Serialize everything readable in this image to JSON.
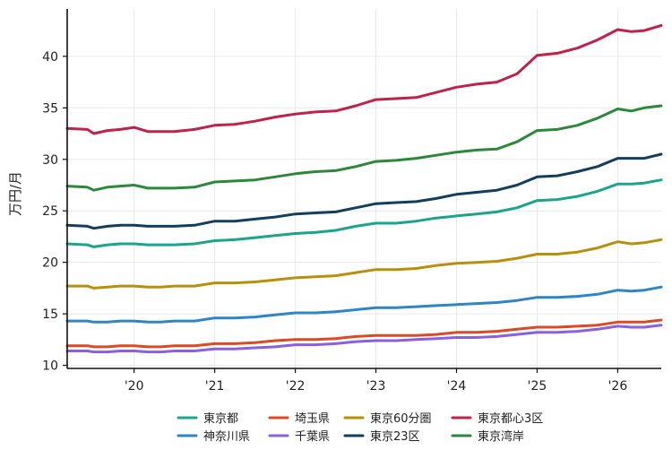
{
  "chart_data": {
    "type": "line",
    "ylabel": "万円/月",
    "xlim": [
      2019.17,
      2026.54
    ],
    "ylim": [
      9.7,
      44.6
    ],
    "x_ticks": [
      {
        "value": 2020,
        "label": "'20"
      },
      {
        "value": 2021,
        "label": "'21"
      },
      {
        "value": 2022,
        "label": "'22"
      },
      {
        "value": 2023,
        "label": "'23"
      },
      {
        "value": 2024,
        "label": "'24"
      },
      {
        "value": 2025,
        "label": "'25"
      },
      {
        "value": 2026,
        "label": "'26"
      }
    ],
    "y_ticks": [
      10,
      15,
      20,
      25,
      30,
      35,
      40
    ],
    "grid": true,
    "legend_position": "bottom",
    "series": [
      {
        "name": "東京都",
        "color": "#1aa58c",
        "x": [
          2019.17,
          2019.42,
          2019.5,
          2019.67,
          2019.83,
          2020.0,
          2020.17,
          2020.33,
          2020.5,
          2020.75,
          2021.0,
          2021.25,
          2021.5,
          2021.75,
          2022.0,
          2022.25,
          2022.5,
          2022.75,
          2023.0,
          2023.25,
          2023.5,
          2023.75,
          2024.0,
          2024.25,
          2024.5,
          2024.75,
          2025.0,
          2025.25,
          2025.5,
          2025.75,
          2026.0,
          2026.17,
          2026.33,
          2026.54
        ],
        "y": [
          21.8,
          21.7,
          21.5,
          21.7,
          21.8,
          21.8,
          21.7,
          21.7,
          21.7,
          21.8,
          22.1,
          22.2,
          22.4,
          22.6,
          22.8,
          22.9,
          23.1,
          23.5,
          23.8,
          23.8,
          24.0,
          24.3,
          24.5,
          24.7,
          24.9,
          25.3,
          26.0,
          26.1,
          26.4,
          26.9,
          27.6,
          27.6,
          27.7,
          28.0
        ]
      },
      {
        "name": "神奈川県",
        "color": "#2c86c8",
        "x": [
          2019.17,
          2019.42,
          2019.5,
          2019.67,
          2019.83,
          2020.0,
          2020.17,
          2020.33,
          2020.5,
          2020.75,
          2021.0,
          2021.25,
          2021.5,
          2021.75,
          2022.0,
          2022.25,
          2022.5,
          2022.75,
          2023.0,
          2023.25,
          2023.5,
          2023.75,
          2024.0,
          2024.25,
          2024.5,
          2024.75,
          2025.0,
          2025.25,
          2025.5,
          2025.75,
          2026.0,
          2026.17,
          2026.33,
          2026.54
        ],
        "y": [
          14.3,
          14.3,
          14.2,
          14.2,
          14.3,
          14.3,
          14.2,
          14.2,
          14.3,
          14.3,
          14.6,
          14.6,
          14.7,
          14.9,
          15.1,
          15.1,
          15.2,
          15.4,
          15.6,
          15.6,
          15.7,
          15.8,
          15.9,
          16.0,
          16.1,
          16.3,
          16.6,
          16.6,
          16.7,
          16.9,
          17.3,
          17.2,
          17.3,
          17.6
        ]
      },
      {
        "name": "埼玉県",
        "color": "#db4a23",
        "x": [
          2019.17,
          2019.42,
          2019.5,
          2019.67,
          2019.83,
          2020.0,
          2020.17,
          2020.33,
          2020.5,
          2020.75,
          2021.0,
          2021.25,
          2021.5,
          2021.75,
          2022.0,
          2022.25,
          2022.5,
          2022.75,
          2023.0,
          2023.25,
          2023.5,
          2023.75,
          2024.0,
          2024.25,
          2024.5,
          2024.75,
          2025.0,
          2025.25,
          2025.5,
          2025.75,
          2026.0,
          2026.17,
          2026.33,
          2026.54
        ],
        "y": [
          11.9,
          11.9,
          11.8,
          11.8,
          11.9,
          11.9,
          11.8,
          11.8,
          11.9,
          11.9,
          12.1,
          12.1,
          12.2,
          12.4,
          12.5,
          12.5,
          12.6,
          12.8,
          12.9,
          12.9,
          12.9,
          13.0,
          13.2,
          13.2,
          13.3,
          13.5,
          13.7,
          13.7,
          13.8,
          13.9,
          14.2,
          14.2,
          14.2,
          14.4
        ]
      },
      {
        "name": "千葉県",
        "color": "#8b5fe0",
        "x": [
          2019.17,
          2019.42,
          2019.5,
          2019.67,
          2019.83,
          2020.0,
          2020.17,
          2020.33,
          2020.5,
          2020.75,
          2021.0,
          2021.25,
          2021.5,
          2021.75,
          2022.0,
          2022.25,
          2022.5,
          2022.75,
          2023.0,
          2023.25,
          2023.5,
          2023.75,
          2024.0,
          2024.25,
          2024.5,
          2024.75,
          2025.0,
          2025.25,
          2025.5,
          2025.75,
          2026.0,
          2026.17,
          2026.33,
          2026.54
        ],
        "y": [
          11.4,
          11.4,
          11.3,
          11.3,
          11.4,
          11.4,
          11.3,
          11.3,
          11.4,
          11.4,
          11.6,
          11.6,
          11.7,
          11.8,
          12.0,
          12.0,
          12.1,
          12.3,
          12.4,
          12.4,
          12.5,
          12.6,
          12.7,
          12.7,
          12.8,
          13.0,
          13.2,
          13.2,
          13.3,
          13.5,
          13.8,
          13.7,
          13.7,
          13.9
        ]
      },
      {
        "name": "東京60分圏",
        "color": "#b9900a",
        "x": [
          2019.17,
          2019.42,
          2019.5,
          2019.67,
          2019.83,
          2020.0,
          2020.17,
          2020.33,
          2020.5,
          2020.75,
          2021.0,
          2021.25,
          2021.5,
          2021.75,
          2022.0,
          2022.25,
          2022.5,
          2022.75,
          2023.0,
          2023.25,
          2023.5,
          2023.75,
          2024.0,
          2024.25,
          2024.5,
          2024.75,
          2025.0,
          2025.25,
          2025.5,
          2025.75,
          2026.0,
          2026.17,
          2026.33,
          2026.54
        ],
        "y": [
          17.7,
          17.7,
          17.5,
          17.6,
          17.7,
          17.7,
          17.6,
          17.6,
          17.7,
          17.7,
          18.0,
          18.0,
          18.1,
          18.3,
          18.5,
          18.6,
          18.7,
          19.0,
          19.3,
          19.3,
          19.4,
          19.7,
          19.9,
          20.0,
          20.1,
          20.4,
          20.8,
          20.8,
          21.0,
          21.4,
          22.0,
          21.8,
          21.9,
          22.2
        ]
      },
      {
        "name": "東京23区",
        "color": "#123f60",
        "x": [
          2019.17,
          2019.42,
          2019.5,
          2019.67,
          2019.83,
          2020.0,
          2020.17,
          2020.33,
          2020.5,
          2020.75,
          2021.0,
          2021.25,
          2021.5,
          2021.75,
          2022.0,
          2022.25,
          2022.5,
          2022.75,
          2023.0,
          2023.25,
          2023.5,
          2023.75,
          2024.0,
          2024.25,
          2024.5,
          2024.75,
          2025.0,
          2025.25,
          2025.5,
          2025.75,
          2026.0,
          2026.17,
          2026.33,
          2026.54
        ],
        "y": [
          23.6,
          23.5,
          23.3,
          23.5,
          23.6,
          23.6,
          23.5,
          23.5,
          23.5,
          23.6,
          24.0,
          24.0,
          24.2,
          24.4,
          24.7,
          24.8,
          24.9,
          25.3,
          25.7,
          25.8,
          25.9,
          26.2,
          26.6,
          26.8,
          27.0,
          27.5,
          28.3,
          28.4,
          28.8,
          29.3,
          30.1,
          30.1,
          30.1,
          30.5
        ]
      },
      {
        "name": "東京都心3区",
        "color": "#c0224a",
        "x": [
          2019.17,
          2019.42,
          2019.5,
          2019.67,
          2019.83,
          2020.0,
          2020.17,
          2020.33,
          2020.5,
          2020.75,
          2021.0,
          2021.25,
          2021.5,
          2021.75,
          2022.0,
          2022.25,
          2022.5,
          2022.75,
          2023.0,
          2023.25,
          2023.5,
          2023.75,
          2024.0,
          2024.25,
          2024.5,
          2024.75,
          2025.0,
          2025.25,
          2025.5,
          2025.75,
          2026.0,
          2026.17,
          2026.33,
          2026.54
        ],
        "y": [
          33.0,
          32.9,
          32.5,
          32.8,
          32.9,
          33.1,
          32.7,
          32.7,
          32.7,
          32.9,
          33.3,
          33.4,
          33.7,
          34.1,
          34.4,
          34.6,
          34.7,
          35.2,
          35.8,
          35.9,
          36.0,
          36.5,
          37.0,
          37.3,
          37.5,
          38.3,
          40.1,
          40.3,
          40.8,
          41.6,
          42.6,
          42.4,
          42.5,
          43.0
        ]
      },
      {
        "name": "東京湾岸",
        "color": "#2a8a3a",
        "x": [
          2019.17,
          2019.42,
          2019.5,
          2019.67,
          2019.83,
          2020.0,
          2020.17,
          2020.33,
          2020.5,
          2020.75,
          2021.0,
          2021.25,
          2021.5,
          2021.75,
          2022.0,
          2022.25,
          2022.5,
          2022.75,
          2023.0,
          2023.25,
          2023.5,
          2023.75,
          2024.0,
          2024.25,
          2024.5,
          2024.75,
          2025.0,
          2025.25,
          2025.5,
          2025.75,
          2026.0,
          2026.17,
          2026.33,
          2026.54
        ],
        "y": [
          27.4,
          27.3,
          27.0,
          27.3,
          27.4,
          27.5,
          27.2,
          27.2,
          27.2,
          27.3,
          27.8,
          27.9,
          28.0,
          28.3,
          28.6,
          28.8,
          28.9,
          29.3,
          29.8,
          29.9,
          30.1,
          30.4,
          30.7,
          30.9,
          31.0,
          31.7,
          32.8,
          32.9,
          33.3,
          34.0,
          34.9,
          34.7,
          35.0,
          35.2
        ]
      }
    ],
    "legend_rows": [
      [
        "東京都",
        "埼玉県",
        "東京60分圏",
        "東京都心3区"
      ],
      [
        "神奈川県",
        "千葉県",
        "東京23区",
        "東京湾岸"
      ]
    ]
  }
}
